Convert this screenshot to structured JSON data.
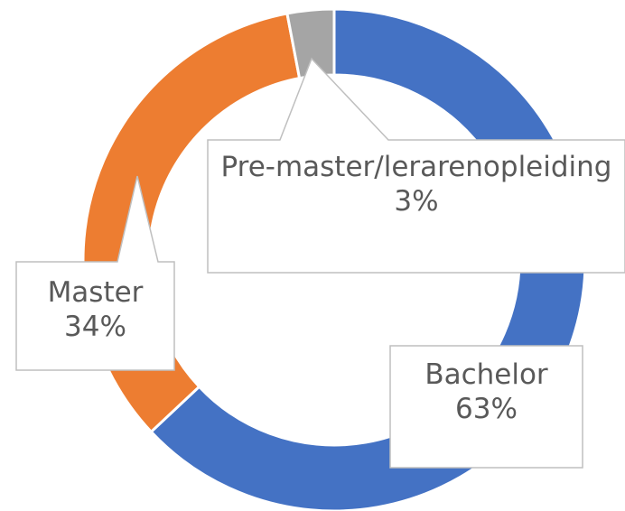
{
  "chart_data": {
    "type": "donut",
    "categories": [
      "Bachelor",
      "Master",
      "Pre-master/lerarenopleiding"
    ],
    "values": [
      63,
      34,
      3
    ],
    "value_labels": [
      "63%",
      "34%",
      "3%"
    ],
    "colors": [
      "#4472c4",
      "#ed7d31",
      "#a5a5a5"
    ]
  }
}
